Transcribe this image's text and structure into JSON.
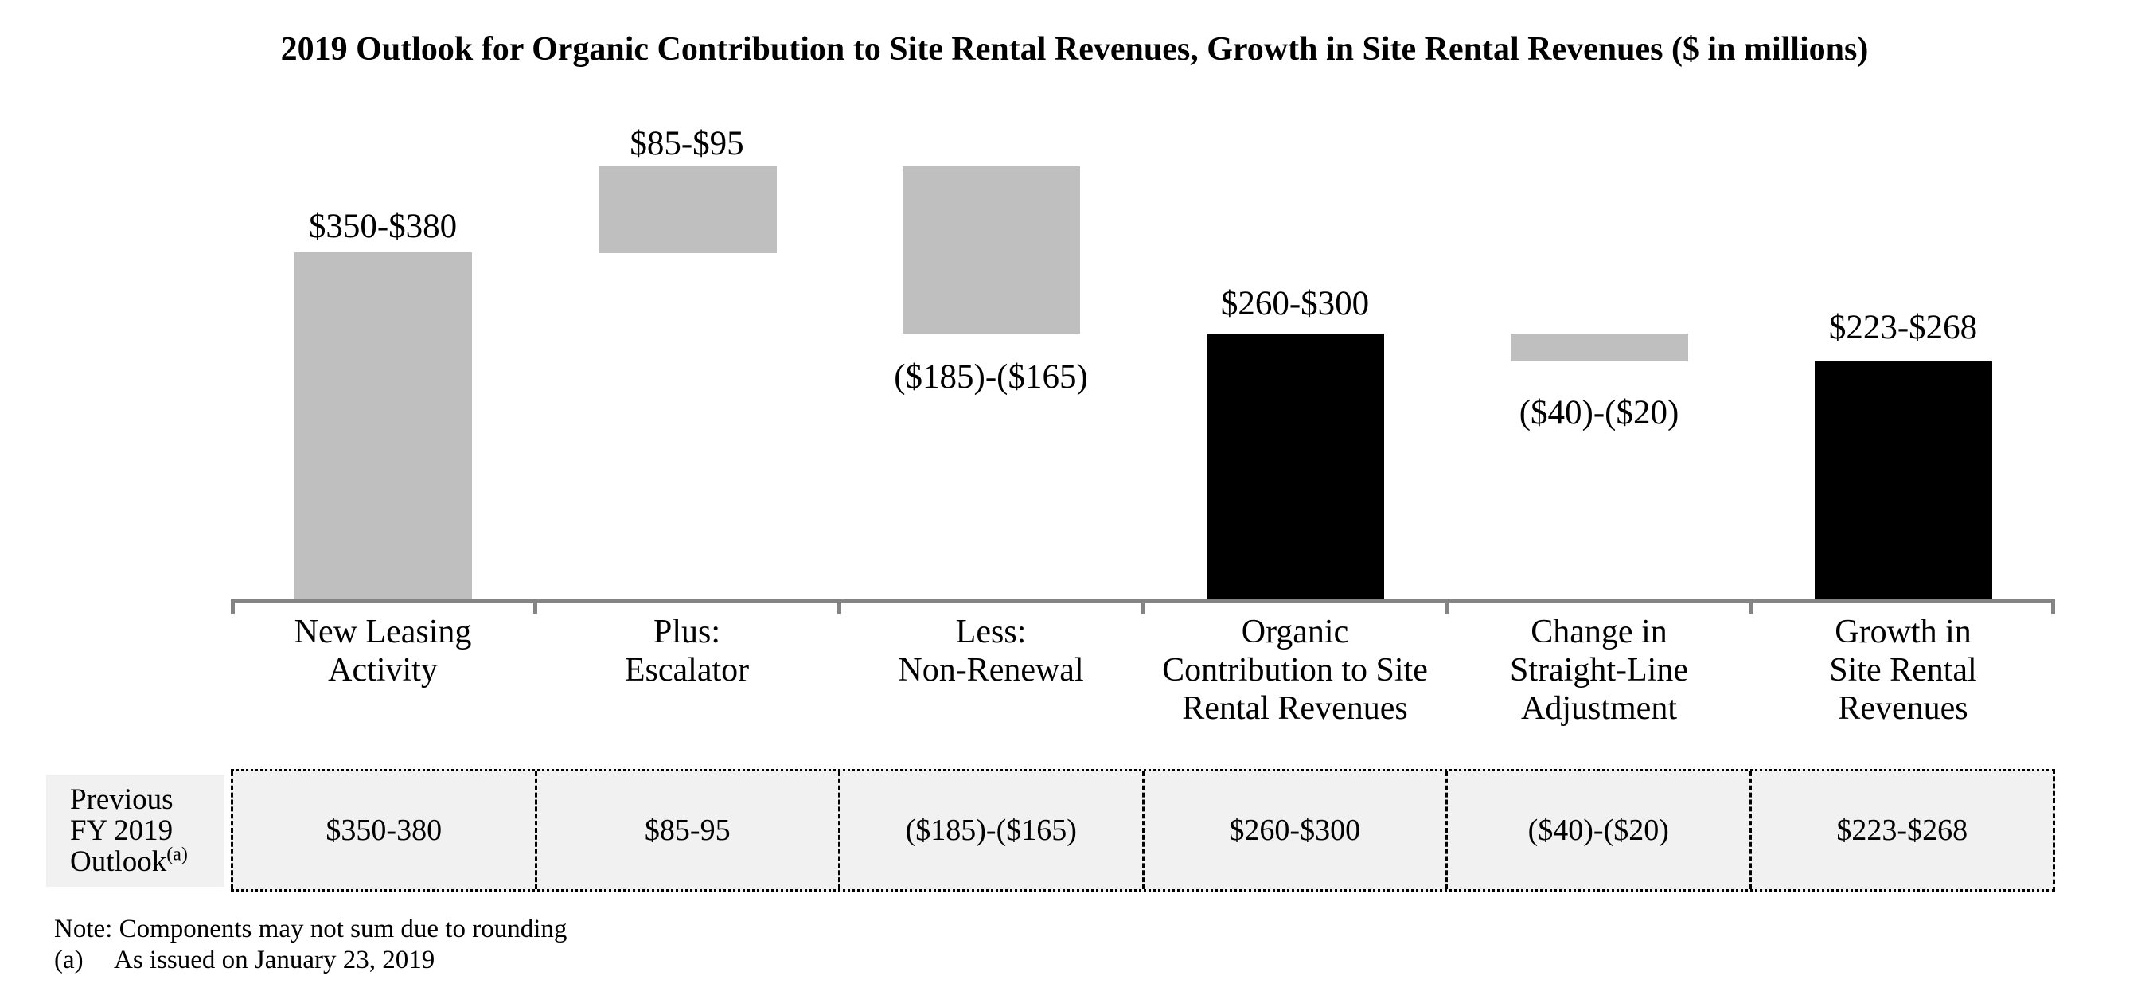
{
  "title": "2019 Outlook for Organic Contribution to Site Rental Revenues, Growth in Site Rental Revenues ($ in millions)",
  "chart_data": {
    "type": "bar",
    "subtype": "waterfall",
    "title": "2019 Outlook for Organic Contribution to Site Rental Revenues, Growth in Site Rental Revenues ($ in millions)",
    "unit": "$ in millions",
    "grid": false,
    "legend": "none",
    "categories": [
      "New Leasing Activity",
      "Plus: Escalator",
      "Less: Non-Renewal",
      "Organic Contribution to Site Rental Revenues",
      "Change in Straight-Line Adjustment",
      "Growth in Site Rental Revenues"
    ],
    "bars": [
      {
        "name": "New Leasing Activity",
        "category_lines": [
          "New Leasing",
          "Activity"
        ],
        "value_label": "$350-$380",
        "range_low": 350,
        "range_high": 380,
        "cumulative_start": 0,
        "cumulative_end": 365,
        "color": "#BFBFBF",
        "label_side": "above"
      },
      {
        "name": "Plus: Escalator",
        "category_lines": [
          "Plus:",
          "Escalator"
        ],
        "value_label": "$85-$95",
        "range_low": 85,
        "range_high": 95,
        "cumulative_start": 365,
        "cumulative_end": 455,
        "color": "#BFBFBF",
        "label_side": "above"
      },
      {
        "name": "Less: Non-Renewal",
        "category_lines": [
          "Less:",
          "Non-Renewal"
        ],
        "value_label": "($185)-($165)",
        "range_low": -185,
        "range_high": -165,
        "cumulative_start": 455,
        "cumulative_end": 280,
        "color": "#BFBFBF",
        "label_side": "below"
      },
      {
        "name": "Organic Contribution to Site Rental Revenues",
        "category_lines": [
          "Organic",
          "Contribution to Site",
          "Rental Revenues"
        ],
        "value_label": "$260-$300",
        "range_low": 260,
        "range_high": 300,
        "cumulative_start": 0,
        "cumulative_end": 280,
        "color": "#000000",
        "label_side": "above"
      },
      {
        "name": "Change in Straight-Line Adjustment",
        "category_lines": [
          "Change in",
          "Straight-Line",
          "Adjustment"
        ],
        "value_label": "($40)-($20)",
        "range_low": -40,
        "range_high": -20,
        "cumulative_start": 280,
        "cumulative_end": 250,
        "color": "#BFBFBF",
        "label_side": "below"
      },
      {
        "name": "Growth in Site Rental Revenues",
        "category_lines": [
          "Growth in",
          "Site Rental",
          "Revenues"
        ],
        "value_label": "$223-$268",
        "range_low": 223,
        "range_high": 268,
        "cumulative_start": 0,
        "cumulative_end": 245,
        "color": "#000000",
        "label_side": "above"
      }
    ]
  },
  "table": {
    "row_header_lines": [
      "Previous",
      "FY 2019",
      "Outlook"
    ],
    "row_header_sup": "(a)",
    "cells": [
      "$350-380",
      "$85-95",
      "($185)-($165)",
      "$260-$300",
      "($40)-($20)",
      "$223-$268"
    ]
  },
  "notes": {
    "note": "Note: Components may not sum due to rounding",
    "footnote_marker": "(a)",
    "footnote_text": "As issued on January 23, 2019"
  },
  "colors": {
    "bar_gray": "#BFBFBF",
    "bar_black": "#000000",
    "axis_line": "#848484",
    "table_background": "#F1F1F1",
    "table_border": "#000000",
    "text": "#000000",
    "background": "#FFFFFF"
  }
}
